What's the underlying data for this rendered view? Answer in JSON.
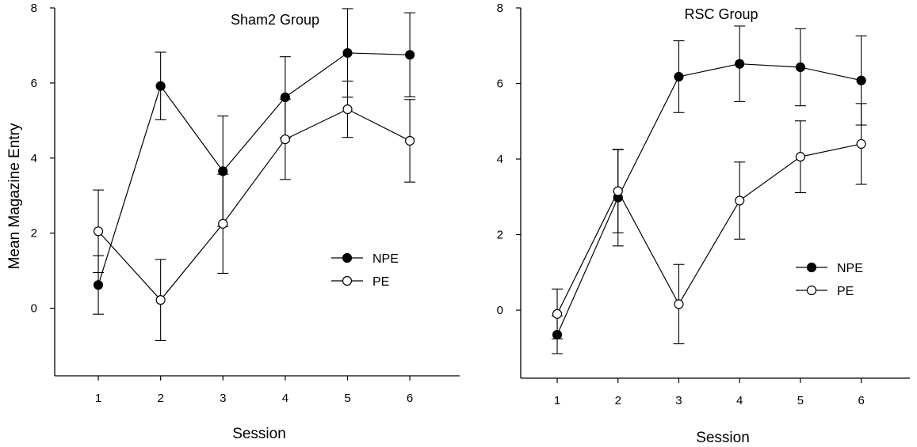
{
  "chart_data": [
    {
      "type": "line",
      "title": "Sham2 Group",
      "xlabel": "Session",
      "ylabel": "Mean Magazine Entry",
      "x": [
        1,
        2,
        3,
        4,
        5,
        6
      ],
      "xticks": [
        "1",
        "2",
        "3",
        "4",
        "5",
        "6"
      ],
      "yticks": [
        "0",
        "2",
        "4",
        "6",
        "8"
      ],
      "xlim": [
        0.3,
        6.8
      ],
      "ylim": [
        -1.8,
        8
      ],
      "legend_position": "center-right",
      "series": [
        {
          "name": "NPE",
          "marker": "filled-circle",
          "color": "#000000",
          "values": [
            0.62,
            5.92,
            3.65,
            5.62,
            6.8,
            6.75
          ],
          "error": [
            0.78,
            0.9,
            1.47,
            1.08,
            1.18,
            1.12
          ]
        },
        {
          "name": "PE",
          "marker": "open-circle",
          "color": "#000000",
          "values": [
            2.05,
            0.22,
            2.25,
            4.5,
            5.3,
            4.46
          ],
          "error": [
            1.1,
            1.08,
            1.32,
            1.07,
            0.75,
            1.1
          ]
        }
      ]
    },
    {
      "type": "line",
      "title": "RSC Group",
      "xlabel": "Session",
      "ylabel": "",
      "x": [
        1,
        2,
        3,
        4,
        5,
        6
      ],
      "xticks": [
        "1",
        "2",
        "3",
        "4",
        "5",
        "6"
      ],
      "yticks": [
        "0",
        "2",
        "4",
        "6",
        "8"
      ],
      "xlim": [
        0.4,
        6.8
      ],
      "ylim": [
        -1.8,
        8
      ],
      "legend_position": "bottom-right",
      "series": [
        {
          "name": "NPE",
          "marker": "filled-circle",
          "color": "#000000",
          "values": [
            -0.65,
            2.98,
            6.18,
            6.52,
            6.43,
            6.08
          ],
          "error": [
            0.5,
            1.28,
            0.95,
            1.0,
            1.02,
            1.18
          ]
        },
        {
          "name": "PE",
          "marker": "open-circle",
          "color": "#000000",
          "values": [
            -0.1,
            3.15,
            0.16,
            2.9,
            4.06,
            4.4
          ],
          "error": [
            0.66,
            1.1,
            1.05,
            1.02,
            0.95,
            1.07
          ]
        }
      ]
    }
  ]
}
